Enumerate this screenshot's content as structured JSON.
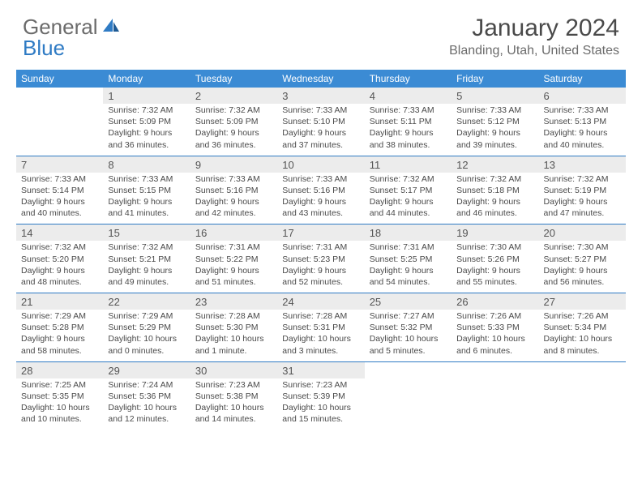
{
  "brand": {
    "text1": "General",
    "text2": "Blue"
  },
  "title": {
    "month": "January 2024",
    "location": "Blanding, Utah, United States"
  },
  "colors": {
    "header_bg": "#3b8bd4",
    "row_sep": "#2f7bc4",
    "daynum_bg": "#ececec",
    "text_dark": "#4a4a4a",
    "text_muted": "#6b6b6b",
    "brand_blue": "#2f7bc4"
  },
  "days_of_week": [
    "Sunday",
    "Monday",
    "Tuesday",
    "Wednesday",
    "Thursday",
    "Friday",
    "Saturday"
  ],
  "weeks": [
    [
      {
        "n": "",
        "sunrise": "",
        "sunset": "",
        "daylight": ""
      },
      {
        "n": "1",
        "sunrise": "Sunrise: 7:32 AM",
        "sunset": "Sunset: 5:09 PM",
        "daylight": "Daylight: 9 hours and 36 minutes."
      },
      {
        "n": "2",
        "sunrise": "Sunrise: 7:32 AM",
        "sunset": "Sunset: 5:09 PM",
        "daylight": "Daylight: 9 hours and 36 minutes."
      },
      {
        "n": "3",
        "sunrise": "Sunrise: 7:33 AM",
        "sunset": "Sunset: 5:10 PM",
        "daylight": "Daylight: 9 hours and 37 minutes."
      },
      {
        "n": "4",
        "sunrise": "Sunrise: 7:33 AM",
        "sunset": "Sunset: 5:11 PM",
        "daylight": "Daylight: 9 hours and 38 minutes."
      },
      {
        "n": "5",
        "sunrise": "Sunrise: 7:33 AM",
        "sunset": "Sunset: 5:12 PM",
        "daylight": "Daylight: 9 hours and 39 minutes."
      },
      {
        "n": "6",
        "sunrise": "Sunrise: 7:33 AM",
        "sunset": "Sunset: 5:13 PM",
        "daylight": "Daylight: 9 hours and 40 minutes."
      }
    ],
    [
      {
        "n": "7",
        "sunrise": "Sunrise: 7:33 AM",
        "sunset": "Sunset: 5:14 PM",
        "daylight": "Daylight: 9 hours and 40 minutes."
      },
      {
        "n": "8",
        "sunrise": "Sunrise: 7:33 AM",
        "sunset": "Sunset: 5:15 PM",
        "daylight": "Daylight: 9 hours and 41 minutes."
      },
      {
        "n": "9",
        "sunrise": "Sunrise: 7:33 AM",
        "sunset": "Sunset: 5:16 PM",
        "daylight": "Daylight: 9 hours and 42 minutes."
      },
      {
        "n": "10",
        "sunrise": "Sunrise: 7:33 AM",
        "sunset": "Sunset: 5:16 PM",
        "daylight": "Daylight: 9 hours and 43 minutes."
      },
      {
        "n": "11",
        "sunrise": "Sunrise: 7:32 AM",
        "sunset": "Sunset: 5:17 PM",
        "daylight": "Daylight: 9 hours and 44 minutes."
      },
      {
        "n": "12",
        "sunrise": "Sunrise: 7:32 AM",
        "sunset": "Sunset: 5:18 PM",
        "daylight": "Daylight: 9 hours and 46 minutes."
      },
      {
        "n": "13",
        "sunrise": "Sunrise: 7:32 AM",
        "sunset": "Sunset: 5:19 PM",
        "daylight": "Daylight: 9 hours and 47 minutes."
      }
    ],
    [
      {
        "n": "14",
        "sunrise": "Sunrise: 7:32 AM",
        "sunset": "Sunset: 5:20 PM",
        "daylight": "Daylight: 9 hours and 48 minutes."
      },
      {
        "n": "15",
        "sunrise": "Sunrise: 7:32 AM",
        "sunset": "Sunset: 5:21 PM",
        "daylight": "Daylight: 9 hours and 49 minutes."
      },
      {
        "n": "16",
        "sunrise": "Sunrise: 7:31 AM",
        "sunset": "Sunset: 5:22 PM",
        "daylight": "Daylight: 9 hours and 51 minutes."
      },
      {
        "n": "17",
        "sunrise": "Sunrise: 7:31 AM",
        "sunset": "Sunset: 5:23 PM",
        "daylight": "Daylight: 9 hours and 52 minutes."
      },
      {
        "n": "18",
        "sunrise": "Sunrise: 7:31 AM",
        "sunset": "Sunset: 5:25 PM",
        "daylight": "Daylight: 9 hours and 54 minutes."
      },
      {
        "n": "19",
        "sunrise": "Sunrise: 7:30 AM",
        "sunset": "Sunset: 5:26 PM",
        "daylight": "Daylight: 9 hours and 55 minutes."
      },
      {
        "n": "20",
        "sunrise": "Sunrise: 7:30 AM",
        "sunset": "Sunset: 5:27 PM",
        "daylight": "Daylight: 9 hours and 56 minutes."
      }
    ],
    [
      {
        "n": "21",
        "sunrise": "Sunrise: 7:29 AM",
        "sunset": "Sunset: 5:28 PM",
        "daylight": "Daylight: 9 hours and 58 minutes."
      },
      {
        "n": "22",
        "sunrise": "Sunrise: 7:29 AM",
        "sunset": "Sunset: 5:29 PM",
        "daylight": "Daylight: 10 hours and 0 minutes."
      },
      {
        "n": "23",
        "sunrise": "Sunrise: 7:28 AM",
        "sunset": "Sunset: 5:30 PM",
        "daylight": "Daylight: 10 hours and 1 minute."
      },
      {
        "n": "24",
        "sunrise": "Sunrise: 7:28 AM",
        "sunset": "Sunset: 5:31 PM",
        "daylight": "Daylight: 10 hours and 3 minutes."
      },
      {
        "n": "25",
        "sunrise": "Sunrise: 7:27 AM",
        "sunset": "Sunset: 5:32 PM",
        "daylight": "Daylight: 10 hours and 5 minutes."
      },
      {
        "n": "26",
        "sunrise": "Sunrise: 7:26 AM",
        "sunset": "Sunset: 5:33 PM",
        "daylight": "Daylight: 10 hours and 6 minutes."
      },
      {
        "n": "27",
        "sunrise": "Sunrise: 7:26 AM",
        "sunset": "Sunset: 5:34 PM",
        "daylight": "Daylight: 10 hours and 8 minutes."
      }
    ],
    [
      {
        "n": "28",
        "sunrise": "Sunrise: 7:25 AM",
        "sunset": "Sunset: 5:35 PM",
        "daylight": "Daylight: 10 hours and 10 minutes."
      },
      {
        "n": "29",
        "sunrise": "Sunrise: 7:24 AM",
        "sunset": "Sunset: 5:36 PM",
        "daylight": "Daylight: 10 hours and 12 minutes."
      },
      {
        "n": "30",
        "sunrise": "Sunrise: 7:23 AM",
        "sunset": "Sunset: 5:38 PM",
        "daylight": "Daylight: 10 hours and 14 minutes."
      },
      {
        "n": "31",
        "sunrise": "Sunrise: 7:23 AM",
        "sunset": "Sunset: 5:39 PM",
        "daylight": "Daylight: 10 hours and 15 minutes."
      },
      {
        "n": "",
        "sunrise": "",
        "sunset": "",
        "daylight": ""
      },
      {
        "n": "",
        "sunrise": "",
        "sunset": "",
        "daylight": ""
      },
      {
        "n": "",
        "sunrise": "",
        "sunset": "",
        "daylight": ""
      }
    ]
  ]
}
